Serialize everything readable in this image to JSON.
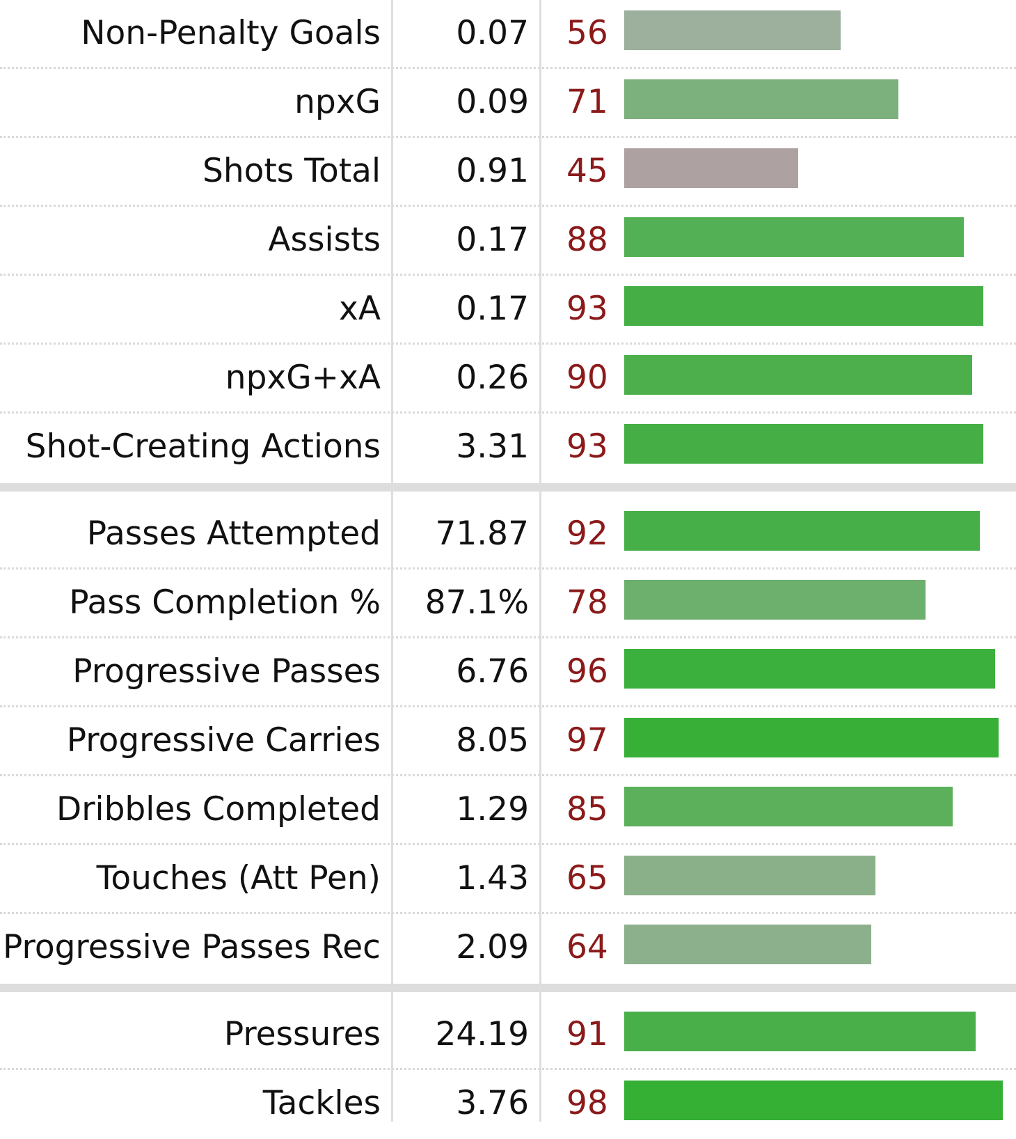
{
  "groups": [
    {
      "rows": [
        {
          "label": "Non-Penalty Goals",
          "value": "0.07",
          "percentile": 56,
          "bar_color": "#9daf9d"
        },
        {
          "label": "npxG",
          "value": "0.09",
          "percentile": 71,
          "bar_color": "#7cb07c"
        },
        {
          "label": "Shots Total",
          "value": "0.91",
          "percentile": 45,
          "bar_color": "#ada1a1"
        },
        {
          "label": "Assists",
          "value": "0.17",
          "percentile": 88,
          "bar_color": "#54b054"
        },
        {
          "label": "xA",
          "value": "0.17",
          "percentile": 93,
          "bar_color": "#45af45"
        },
        {
          "label": "npxG+xA",
          "value": "0.26",
          "percentile": 90,
          "bar_color": "#4caf4c"
        },
        {
          "label": "Shot-Creating Actions",
          "value": "3.31",
          "percentile": 93,
          "bar_color": "#45af45"
        }
      ]
    },
    {
      "rows": [
        {
          "label": "Passes Attempted",
          "value": "71.87",
          "percentile": 92,
          "bar_color": "#47af47"
        },
        {
          "label": "Pass Completion %",
          "value": "87.1%",
          "percentile": 78,
          "bar_color": "#6db06d"
        },
        {
          "label": "Progressive Passes",
          "value": "6.76",
          "percentile": 96,
          "bar_color": "#3cb03c"
        },
        {
          "label": "Progressive Carries",
          "value": "8.05",
          "percentile": 97,
          "bar_color": "#38b038"
        },
        {
          "label": "Dribbles Completed",
          "value": "1.29",
          "percentile": 85,
          "bar_color": "#5cb05c"
        },
        {
          "label": "Touches (Att Pen)",
          "value": "1.43",
          "percentile": 65,
          "bar_color": "#8ab08a"
        },
        {
          "label": "Progressive Passes Rec",
          "value": "2.09",
          "percentile": 64,
          "bar_color": "#8cb08c"
        }
      ]
    },
    {
      "rows": [
        {
          "label": "Pressures",
          "value": "24.19",
          "percentile": 91,
          "bar_color": "#49af49"
        },
        {
          "label": "Tackles",
          "value": "3.76",
          "percentile": 98,
          "bar_color": "#35b035"
        }
      ]
    }
  ]
}
